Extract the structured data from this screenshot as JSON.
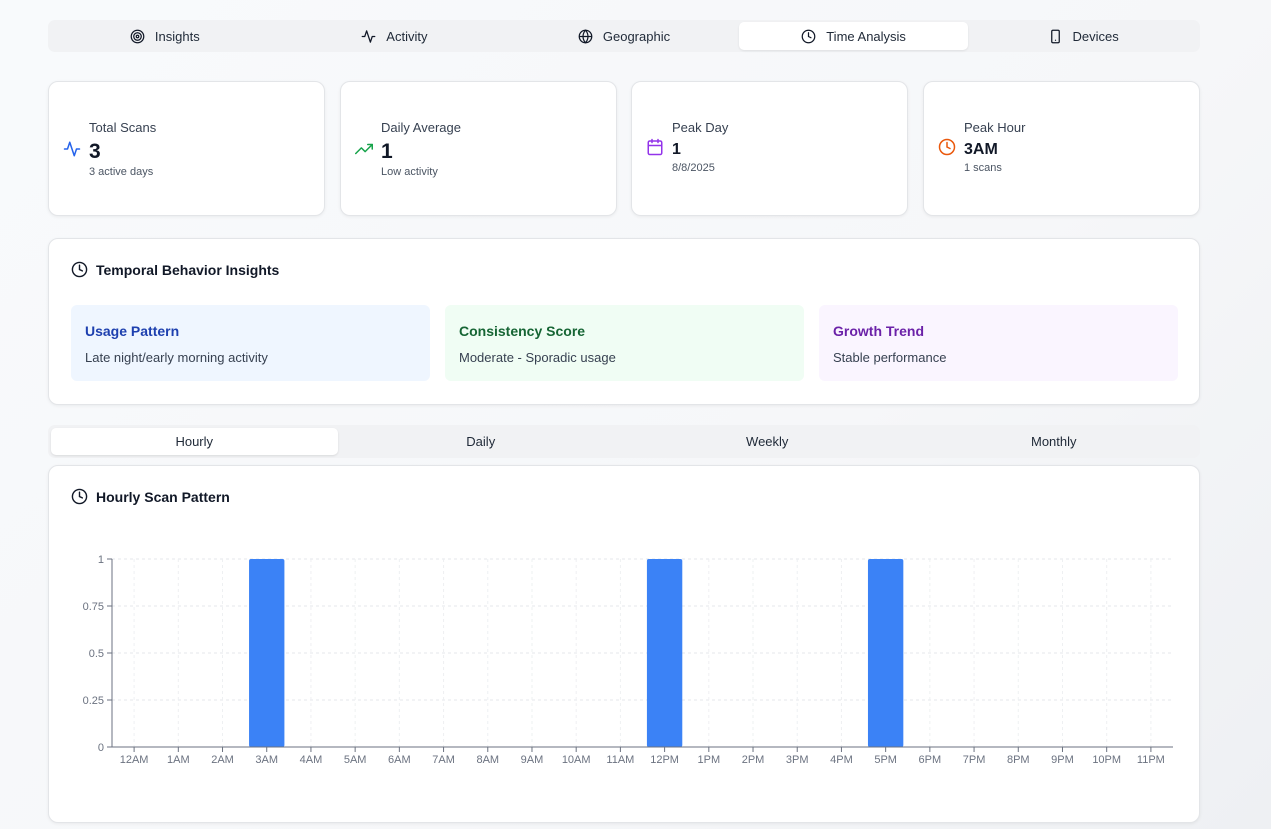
{
  "main_tabs": [
    {
      "label": "Insights",
      "icon": "target-icon"
    },
    {
      "label": "Activity",
      "icon": "activity-icon"
    },
    {
      "label": "Geographic",
      "icon": "globe-icon"
    },
    {
      "label": "Time Analysis",
      "icon": "clock-icon",
      "active": true
    },
    {
      "label": "Devices",
      "icon": "smartphone-icon"
    }
  ],
  "stats": {
    "total_scans": {
      "label": "Total Scans",
      "value": "3",
      "sub": "3 active days",
      "icon": "activity-icon",
      "color": "#2563eb"
    },
    "daily_average": {
      "label": "Daily Average",
      "value": "1",
      "sub": "Low activity",
      "icon": "trending-up-icon",
      "color": "#16a34a"
    },
    "peak_day": {
      "label": "Peak Day",
      "value": "1",
      "sub": "8/8/2025",
      "icon": "calendar-icon",
      "color": "#9333ea"
    },
    "peak_hour": {
      "label": "Peak Hour",
      "value": "3AM",
      "sub": "1 scans",
      "icon": "clock-icon",
      "color": "#ea580c"
    }
  },
  "temporal": {
    "title": "Temporal Behavior Insights",
    "cards": [
      {
        "title": "Usage Pattern",
        "desc": "Late night/early morning activity",
        "bg": "#eff6ff",
        "color": "#1e40af"
      },
      {
        "title": "Consistency Score",
        "desc": "Moderate - Sporadic usage",
        "bg": "#f0fdf4",
        "color": "#166534"
      },
      {
        "title": "Growth Trend",
        "desc": "Stable performance",
        "bg": "#faf5ff",
        "color": "#6b21a8"
      }
    ]
  },
  "time_tabs": [
    {
      "label": "Hourly",
      "active": true
    },
    {
      "label": "Daily"
    },
    {
      "label": "Weekly"
    },
    {
      "label": "Monthly"
    }
  ],
  "hourly_chart": {
    "title": "Hourly Scan Pattern"
  },
  "chart_data": {
    "type": "bar",
    "categories": [
      "12AM",
      "1AM",
      "2AM",
      "3AM",
      "4AM",
      "5AM",
      "6AM",
      "7AM",
      "8AM",
      "9AM",
      "10AM",
      "11AM",
      "12PM",
      "1PM",
      "2PM",
      "3PM",
      "4PM",
      "5PM",
      "6PM",
      "7PM",
      "8PM",
      "9PM",
      "10PM",
      "11PM"
    ],
    "values": [
      0,
      0,
      0,
      1,
      0,
      0,
      0,
      0,
      0,
      0,
      0,
      0,
      1,
      0,
      0,
      0,
      0,
      1,
      0,
      0,
      0,
      0,
      0,
      0
    ],
    "ylim": [
      0,
      1
    ],
    "yticks": [
      "0",
      "0.25",
      "0.5",
      "0.75",
      "1"
    ],
    "grid": true,
    "bar_color": "#3b82f6"
  }
}
